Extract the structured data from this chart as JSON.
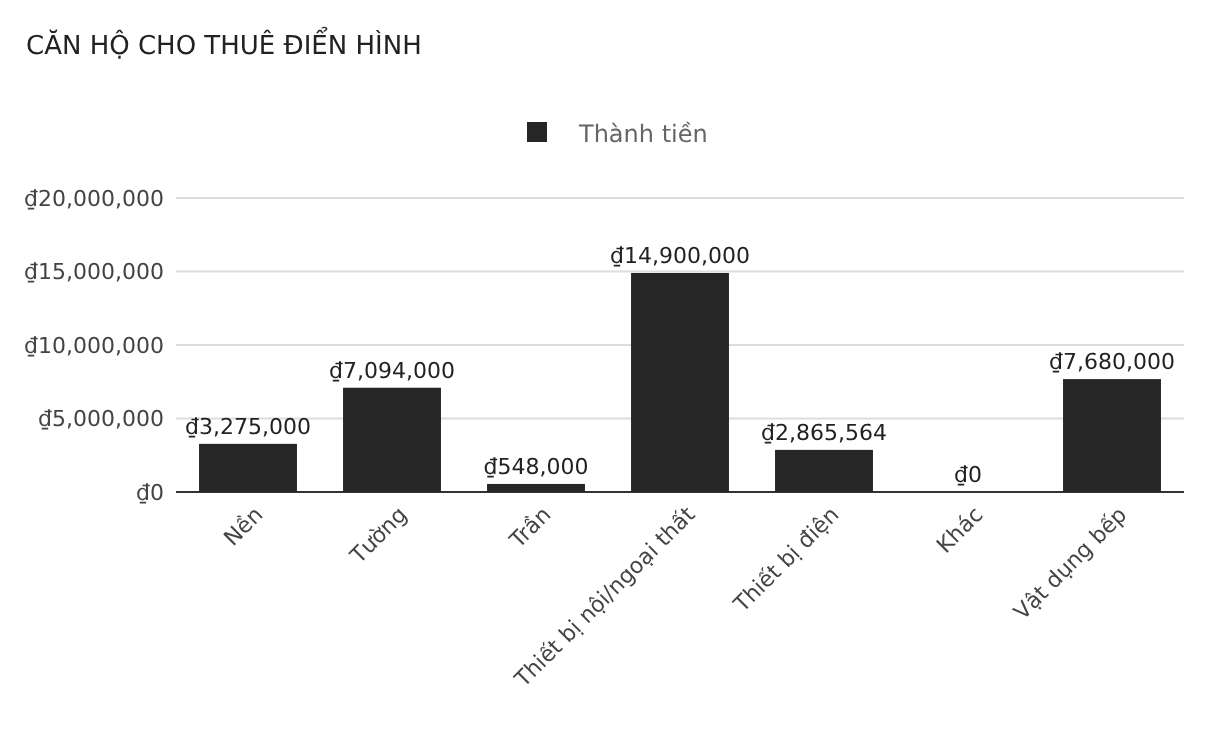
{
  "chart_data": {
    "type": "bar",
    "title": "CĂN HỘ CHO THUÊ ĐIỂN HÌNH",
    "categories": [
      "Nền",
      "Tường",
      "Trần",
      "Thiết bị nội/ngoại thất",
      "Thiết bị điện",
      "Khác",
      "Vật dụng bếp"
    ],
    "series": [
      {
        "name": "Thành tiền",
        "color": "#262626",
        "values": [
          3275000,
          7094000,
          548000,
          14900000,
          2865564,
          0,
          7680000
        ]
      }
    ],
    "ylim": [
      0,
      20000000
    ],
    "yticks": [
      {
        "value": 0,
        "label": "₫0"
      },
      {
        "value": 5000000,
        "label": "₫5,000,000"
      },
      {
        "value": 10000000,
        "label": "₫10,000,000"
      },
      {
        "value": 15000000,
        "label": "₫15,000,000"
      },
      {
        "value": 20000000,
        "label": "₫20,000,000"
      }
    ],
    "value_labels": [
      "₫3,275,000",
      "₫7,094,000",
      "₫548,000",
      "₫14,900,000",
      "₫2,865,564",
      "₫0",
      "₫7,680,000"
    ],
    "grid": "y",
    "legend": "top"
  }
}
